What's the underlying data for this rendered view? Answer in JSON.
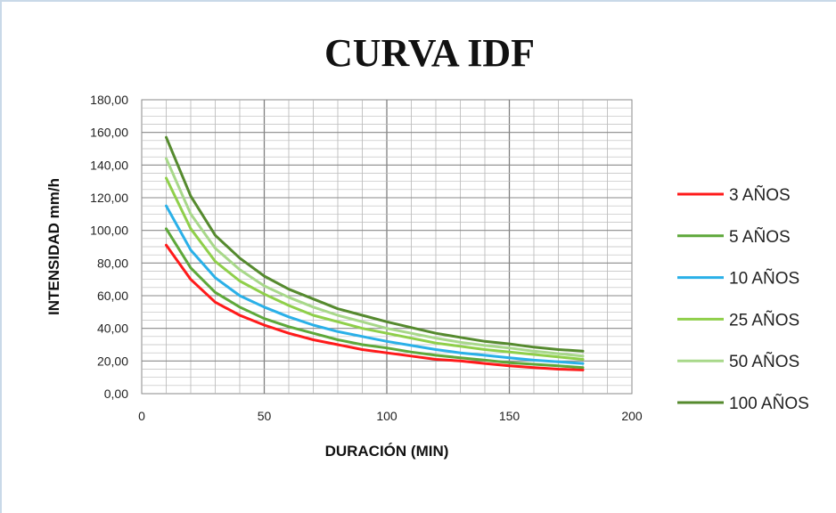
{
  "chart_data": {
    "type": "line",
    "title": "CURVA IDF",
    "xlabel": "DURACIÓN (MIN)",
    "ylabel": "INTENSIDAD mm/h",
    "xlim": [
      0,
      200
    ],
    "ylim": [
      0,
      180
    ],
    "xticks": [
      0,
      50,
      100,
      150,
      200
    ],
    "yticks": [
      "0,00",
      "20,00",
      "40,00",
      "60,00",
      "80,00",
      "100,00",
      "120,00",
      "140,00",
      "160,00",
      "180,00"
    ],
    "grid": true,
    "legend": "right",
    "x": [
      10,
      20,
      30,
      40,
      50,
      60,
      70,
      80,
      90,
      100,
      110,
      120,
      130,
      140,
      150,
      160,
      170,
      180
    ],
    "series": [
      {
        "name": "3 AÑOS",
        "color": "#ff1a1a",
        "values": [
          91,
          70,
          56,
          48,
          42,
          37,
          33,
          30,
          27,
          25,
          23,
          21,
          20,
          18.5,
          17,
          16,
          15,
          14.5
        ]
      },
      {
        "name": "5 AÑOS",
        "color": "#5ea83a",
        "values": [
          101,
          77,
          62,
          53,
          46,
          41,
          37,
          33,
          30,
          28,
          25.5,
          23.5,
          22,
          20.5,
          19,
          18,
          17,
          16
        ]
      },
      {
        "name": "10 AÑOS",
        "color": "#2ab0e8",
        "values": [
          115,
          88,
          71,
          60,
          53,
          47,
          42,
          38,
          35,
          32,
          29.5,
          27,
          25,
          23.5,
          22,
          20.5,
          19.5,
          18.5
        ]
      },
      {
        "name": "25 AÑOS",
        "color": "#8fcf4a",
        "values": [
          132,
          101,
          81,
          69,
          61,
          54,
          48,
          44,
          40,
          37,
          34,
          31,
          29,
          27,
          25.5,
          24,
          22.5,
          21
        ]
      },
      {
        "name": "50 AÑOS",
        "color": "#a8d88a",
        "values": [
          144,
          110,
          89,
          76,
          66,
          59,
          53,
          48,
          44,
          40,
          37,
          34,
          31.5,
          29.5,
          28,
          26,
          24.5,
          23
        ]
      },
      {
        "name": "100 AÑOS",
        "color": "#558a2e",
        "values": [
          157,
          121,
          97,
          83,
          72,
          64,
          58,
          52,
          48,
          44,
          40.5,
          37,
          34.5,
          32,
          30.5,
          28.5,
          27,
          26
        ]
      }
    ]
  }
}
